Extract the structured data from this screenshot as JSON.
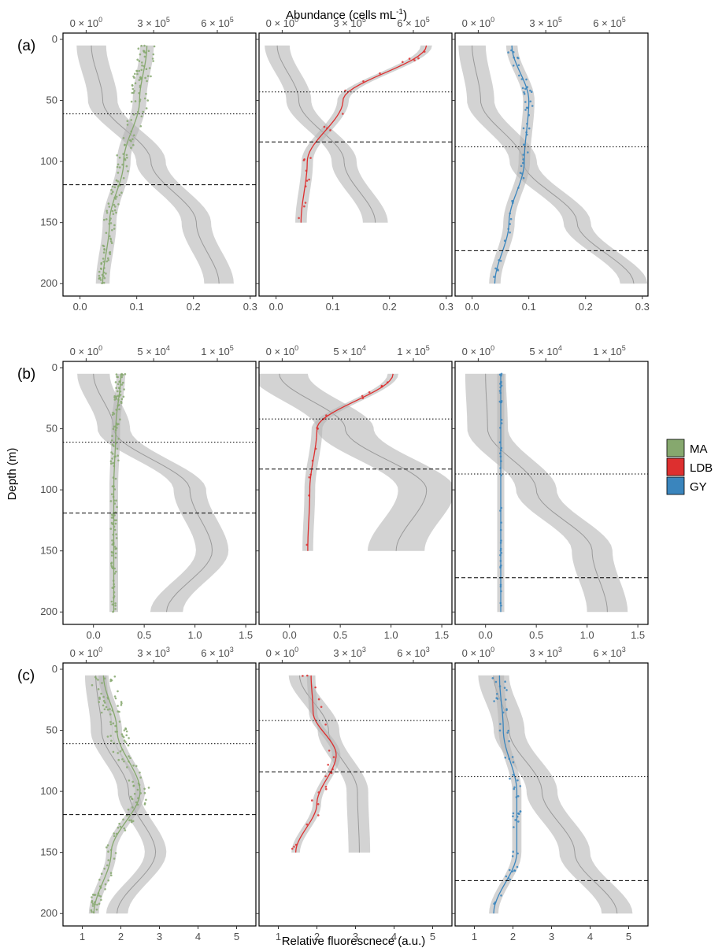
{
  "figure": {
    "top_axis_title": "Abundance (cells mL",
    "top_axis_title_sup": "-1",
    "top_axis_title_end": ")",
    "y_axis_title": "Depth (m)",
    "bottom_axis_title": "Relative fluorescnece (a.u.)"
  },
  "legend": [
    {
      "label": "MA",
      "color": "#86a86e"
    },
    {
      "label": "LDB",
      "color": "#dd2f2f"
    },
    {
      "label": "GY",
      "color": "#3a85bd"
    }
  ],
  "chart_data": [
    {
      "type": "scatter",
      "panel": "(a)",
      "region": "MA",
      "bottom_ticks": [
        "0.0",
        "0.1",
        "0.2",
        "0.3"
      ],
      "xlim_bottom": [
        -0.03,
        0.31
      ],
      "top_ticks": [
        [
          "0 × 10",
          "0"
        ],
        [
          "3 × 10",
          "5"
        ],
        [
          "6 × 10",
          "5"
        ]
      ],
      "y_ticks": [
        "0",
        "50",
        "100",
        "150",
        "200"
      ],
      "ylim": [
        0,
        205
      ],
      "mld": 61,
      "dcm": 119,
      "depth_max": 200,
      "fluor_fit": {
        "d": [
          5,
          50,
          100,
          150,
          200
        ],
        "v": [
          0.118,
          0.105,
          0.077,
          0.052,
          0.04
        ]
      },
      "fluor_ci": 0.008,
      "abund_fit": {
        "d": [
          5,
          50,
          100,
          150,
          200
        ],
        "v": [
          0.02,
          0.04,
          0.125,
          0.205,
          0.245
        ]
      },
      "abund_ci": 0.026,
      "points": {
        "n": 160,
        "spread": 0.018
      }
    },
    {
      "type": "scatter",
      "panel": "(a)",
      "region": "LDB",
      "bottom_ticks": [
        "0.0",
        "0.1",
        "0.2",
        "0.3"
      ],
      "xlim_bottom": [
        -0.03,
        0.31
      ],
      "top_ticks": [
        [
          "0 × 10",
          "0"
        ],
        [
          "3 × 10",
          "5"
        ],
        [
          "6 × 10",
          "5"
        ]
      ],
      "y_ticks": [
        "0",
        "50",
        "100",
        "150",
        "200"
      ],
      "ylim": [
        0,
        205
      ],
      "mld": 43,
      "dcm": 84,
      "depth_max": 150,
      "fluor_fit": {
        "d": [
          5,
          50,
          100,
          150
        ],
        "v": [
          0.265,
          0.118,
          0.055,
          0.044
        ]
      },
      "fluor_ci": 0.006,
      "abund_fit": {
        "d": [
          5,
          50,
          100,
          150
        ],
        "v": [
          0.002,
          0.04,
          0.12,
          0.175
        ]
      },
      "abund_ci": 0.022,
      "points": {
        "n": 22,
        "spread": 0.012
      }
    },
    {
      "type": "scatter",
      "panel": "(a)",
      "region": "GY",
      "bottom_ticks": [
        "0.0",
        "0.1",
        "0.2",
        "0.3"
      ],
      "xlim_bottom": [
        -0.03,
        0.31
      ],
      "top_ticks": [
        [
          "0 × 10",
          "0"
        ],
        [
          "3 × 10",
          "5"
        ],
        [
          "6 × 10",
          "5"
        ]
      ],
      "y_ticks": [
        "0",
        "50",
        "100",
        "150",
        "200"
      ],
      "ylim": [
        0,
        205
      ],
      "mld": 88,
      "dcm": 173,
      "depth_max": 200,
      "fluor_fit": {
        "d": [
          5,
          50,
          100,
          150,
          200
        ],
        "v": [
          0.07,
          0.1,
          0.092,
          0.065,
          0.04
        ]
      },
      "fluor_ci": 0.006,
      "abund_fit": {
        "d": [
          5,
          50,
          100,
          150,
          200
        ],
        "v": [
          0.0,
          0.015,
          0.09,
          0.185,
          0.285
        ]
      },
      "abund_ci": 0.024,
      "points": {
        "n": 55,
        "spread": 0.008
      }
    },
    {
      "type": "scatter",
      "panel": "(b)",
      "region": "MA",
      "bottom_ticks": [
        "0.0",
        "0.5",
        "1.0",
        "1.5"
      ],
      "xlim_bottom": [
        -0.3,
        1.6
      ],
      "top_ticks": [
        [
          "0 × 10",
          "0"
        ],
        [
          "5 × 10",
          "4"
        ],
        [
          "1 × 10",
          "5"
        ]
      ],
      "y_ticks": [
        "0",
        "50",
        "100",
        "150",
        "200"
      ],
      "ylim": [
        0,
        205
      ],
      "mld": 61,
      "dcm": 119,
      "depth_max": 200,
      "fluor_fit": {
        "d": [
          5,
          50,
          100,
          150,
          200
        ],
        "v": [
          0.27,
          0.22,
          0.2,
          0.2,
          0.2
        ]
      },
      "fluor_ci": 0.02,
      "abund_fit": {
        "d": [
          5,
          50,
          100,
          150,
          200
        ],
        "v": [
          0.0,
          0.2,
          0.95,
          1.17,
          0.72
        ]
      },
      "abund_ci": 0.16,
      "points": {
        "n": 130,
        "spread": 0.05
      }
    },
    {
      "type": "scatter",
      "panel": "(b)",
      "region": "LDB",
      "bottom_ticks": [
        "0.0",
        "0.5",
        "1.0",
        "1.5"
      ],
      "xlim_bottom": [
        -0.3,
        1.6
      ],
      "top_ticks": [
        [
          "0 × 10",
          "0"
        ],
        [
          "5 × 10",
          "4"
        ],
        [
          "1 × 10",
          "5"
        ]
      ],
      "y_ticks": [
        "0",
        "50",
        "100",
        "150",
        "200"
      ],
      "ylim": [
        0,
        205
      ],
      "mld": 42,
      "dcm": 83,
      "depth_max": 150,
      "fluor_fit": {
        "d": [
          5,
          50,
          100,
          150
        ],
        "v": [
          1.02,
          0.27,
          0.2,
          0.18
        ]
      },
      "fluor_ci": 0.03,
      "abund_fit": {
        "d": [
          5,
          50,
          100,
          150
        ],
        "v": [
          -0.1,
          0.55,
          1.35,
          1.05
        ]
      },
      "abund_ci": 0.28,
      "points": {
        "n": 16,
        "spread": 0.04
      }
    },
    {
      "type": "scatter",
      "panel": "(b)",
      "region": "GY",
      "bottom_ticks": [
        "0.0",
        "0.5",
        "1.0",
        "1.5"
      ],
      "xlim_bottom": [
        -0.3,
        1.6
      ],
      "top_ticks": [
        [
          "0 × 10",
          "0"
        ],
        [
          "5 × 10",
          "4"
        ],
        [
          "1 × 10",
          "5"
        ]
      ],
      "y_ticks": [
        "0",
        "50",
        "100",
        "150",
        "200"
      ],
      "ylim": [
        0,
        205
      ],
      "mld": 87,
      "dcm": 172,
      "depth_max": 200,
      "fluor_fit": {
        "d": [
          5,
          50,
          100,
          150,
          200
        ],
        "v": [
          0.15,
          0.15,
          0.15,
          0.15,
          0.15
        ]
      },
      "fluor_ci": 0.012,
      "abund_fit": {
        "d": [
          5,
          50,
          100,
          150,
          200
        ],
        "v": [
          0.0,
          0.02,
          0.5,
          1.05,
          1.2
        ]
      },
      "abund_ci": 0.2,
      "points": {
        "n": 45,
        "spread": 0.01
      }
    },
    {
      "type": "scatter",
      "panel": "(c)",
      "region": "MA",
      "bottom_ticks": [
        "1",
        "2",
        "3",
        "4",
        "5"
      ],
      "xlim_bottom": [
        0.5,
        5.5
      ],
      "top_ticks": [
        [
          "0 × 10",
          "0"
        ],
        [
          "3 × 10",
          "3"
        ],
        [
          "6 × 10",
          "3"
        ]
      ],
      "y_ticks": [
        "0",
        "50",
        "100",
        "150",
        "200"
      ],
      "ylim": [
        0,
        205
      ],
      "mld": 61,
      "dcm": 119,
      "depth_max": 200,
      "fluor_fit": {
        "d": [
          5,
          50,
          100,
          150,
          200
        ],
        "v": [
          1.55,
          1.9,
          2.5,
          1.75,
          1.3
        ]
      },
      "fluor_ci": 0.07,
      "abund_fit": {
        "d": [
          5,
          50,
          100,
          150,
          200
        ],
        "v": [
          1.35,
          1.5,
          2.2,
          2.9,
          1.9
        ]
      },
      "abund_ci": 0.28,
      "points": {
        "n": 150,
        "spread": 0.35
      }
    },
    {
      "type": "scatter",
      "panel": "(c)",
      "region": "LDB",
      "bottom_ticks": [
        "1",
        "2",
        "3",
        "4",
        "5"
      ],
      "xlim_bottom": [
        0.5,
        5.5
      ],
      "top_ticks": [
        [
          "0 × 10",
          "0"
        ],
        [
          "3 × 10",
          "3"
        ],
        [
          "6 × 10",
          "3"
        ]
      ],
      "y_ticks": [
        "0",
        "50",
        "100",
        "150",
        "200"
      ],
      "ylim": [
        0,
        205
      ],
      "mld": 42,
      "dcm": 84,
      "depth_max": 150,
      "fluor_fit": {
        "d": [
          5,
          35,
          70,
          110,
          150
        ],
        "v": [
          1.85,
          1.9,
          2.5,
          2.0,
          1.45
        ]
      },
      "fluor_ci": 0.05,
      "abund_fit": {
        "d": [
          5,
          50,
          100,
          150
        ],
        "v": [
          1.55,
          2.3,
          3.05,
          3.1
        ]
      },
      "abund_ci": 0.28,
      "points": {
        "n": 22,
        "spread": 0.25
      }
    },
    {
      "type": "scatter",
      "panel": "(c)",
      "region": "GY",
      "bottom_ticks": [
        "1",
        "2",
        "3",
        "4",
        "5"
      ],
      "xlim_bottom": [
        0.5,
        5.5
      ],
      "top_ticks": [
        [
          "0 × 10",
          "0"
        ],
        [
          "3 × 10",
          "3"
        ],
        [
          "6 × 10",
          "3"
        ]
      ],
      "y_ticks": [
        "0",
        "50",
        "100",
        "150",
        "200"
      ],
      "ylim": [
        0,
        205
      ],
      "mld": 88,
      "dcm": 173,
      "depth_max": 200,
      "fluor_fit": {
        "d": [
          5,
          50,
          100,
          150,
          200
        ],
        "v": [
          1.65,
          1.75,
          2.1,
          2.1,
          1.5
        ]
      },
      "fluor_ci": 0.06,
      "abund_fit": {
        "d": [
          5,
          50,
          100,
          150,
          200
        ],
        "v": [
          1.5,
          1.9,
          2.75,
          3.6,
          4.7
        ]
      },
      "abund_ci": 0.4,
      "points": {
        "n": 55,
        "spread": 0.2
      }
    }
  ]
}
